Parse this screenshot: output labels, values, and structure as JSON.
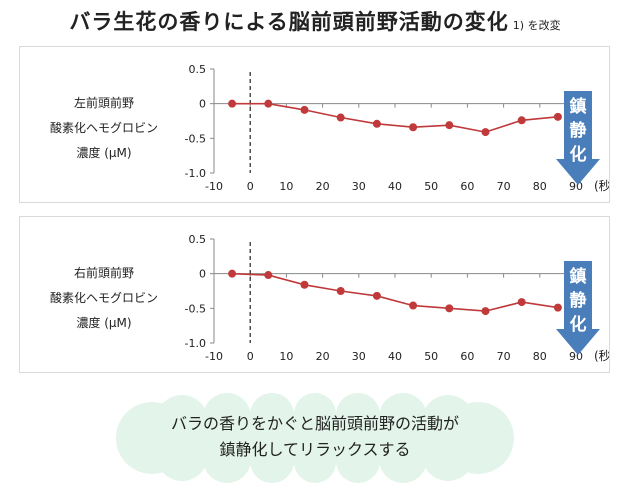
{
  "title": {
    "main": "バラ生花の香りによる脳前頭前野活動の変化",
    "note": "1) を改変"
  },
  "sedation_label": [
    "鎮",
    "静",
    "化"
  ],
  "bubble": {
    "lines": [
      "バラの香りをかぐと脳前頭前野の活動が",
      "鎮静化してリラックスする"
    ]
  },
  "colors": {
    "series": "#c0393b",
    "arrow": "#4a7ebb",
    "bubble": "#e3f4ea"
  },
  "chart_data": [
    {
      "type": "line",
      "ylabel_lines": [
        "左前頭前野",
        "酸素化ヘモグロビン",
        "濃度 (μM)"
      ],
      "x_unit": "(秒)",
      "xlim": [
        -10,
        90
      ],
      "ylim": [
        -1.0,
        0.5
      ],
      "x_ticks": [
        -10,
        0,
        10,
        20,
        30,
        40,
        50,
        60,
        70,
        80,
        90
      ],
      "y_ticks": [
        0.5,
        0,
        -0.5,
        -1.0
      ],
      "y_tick_labels": [
        "0.5",
        "0",
        "-0.5",
        "-1.0"
      ],
      "stimulus_onset": 0,
      "x": [
        -5,
        5,
        15,
        25,
        35,
        45,
        55,
        65,
        75,
        85
      ],
      "values": [
        0.0,
        0.0,
        -0.09,
        -0.2,
        -0.29,
        -0.34,
        -0.31,
        -0.41,
        -0.24,
        -0.19
      ]
    },
    {
      "type": "line",
      "ylabel_lines": [
        "右前頭前野",
        "酸素化ヘモグロビン",
        "濃度 (μM)"
      ],
      "x_unit": "(秒)",
      "xlim": [
        -10,
        90
      ],
      "ylim": [
        -1.0,
        0.5
      ],
      "x_ticks": [
        -10,
        0,
        10,
        20,
        30,
        40,
        50,
        60,
        70,
        80,
        90
      ],
      "y_ticks": [
        0.5,
        0,
        -0.5,
        -1.0
      ],
      "y_tick_labels": [
        "0.5",
        "0",
        "-0.5",
        "-1.0"
      ],
      "stimulus_onset": 0,
      "x": [
        -5,
        5,
        15,
        25,
        35,
        45,
        55,
        65,
        75,
        85
      ],
      "values": [
        0.0,
        -0.02,
        -0.16,
        -0.25,
        -0.32,
        -0.46,
        -0.5,
        -0.54,
        -0.41,
        -0.49
      ]
    }
  ]
}
